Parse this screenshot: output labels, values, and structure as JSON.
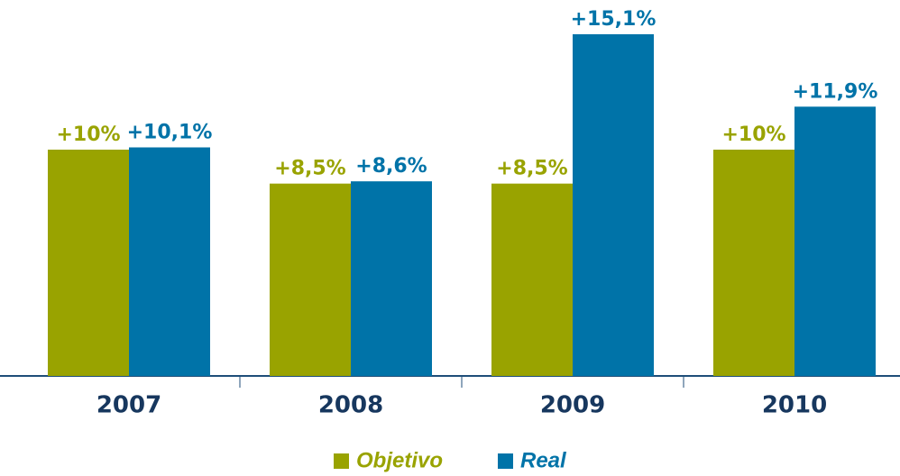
{
  "chart_data": {
    "type": "bar",
    "categories": [
      "2007",
      "2008",
      "2009",
      "2010"
    ],
    "series": [
      {
        "name": "Objetivo",
        "color": "#99a300",
        "values": [
          10,
          8.5,
          8.5,
          10
        ],
        "value_labels": [
          "+10%",
          "+8,5%",
          "+8,5%",
          "+10%"
        ]
      },
      {
        "name": "Real",
        "color": "#0073a8",
        "values": [
          10.1,
          8.6,
          15.1,
          11.9
        ],
        "value_labels": [
          "+10,1%",
          "+8,6%",
          "+15,1%",
          "+11,9%"
        ]
      }
    ],
    "legend": "bottom"
  }
}
